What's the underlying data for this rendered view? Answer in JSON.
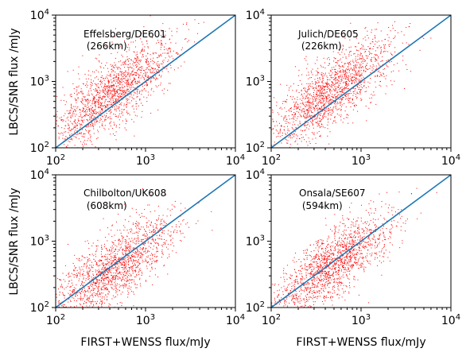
{
  "chart_data": [
    {
      "type": "scatter",
      "panel": "top-left",
      "annotation_line1": "Effelsberg/DE601",
      "annotation_line2": " (266km)",
      "xlabel": "",
      "ylabel": "LBCS/SNR flux /mJy",
      "xscale": "log",
      "yscale": "log",
      "xlim": [
        100,
        10000
      ],
      "ylim": [
        100,
        10000
      ],
      "point_color": "#ff0000",
      "line_color": "#1f77b4",
      "reference_line": "y = x",
      "cluster": {
        "x_center": 450,
        "y_center": 700,
        "n_points": 1600,
        "ratio_median": 1.6
      }
    },
    {
      "type": "scatter",
      "panel": "top-right",
      "annotation_line1": "Julich/DE605",
      "annotation_line2": " (226km)",
      "xlabel": "",
      "ylabel": "",
      "xscale": "log",
      "yscale": "log",
      "xlim": [
        100,
        10000
      ],
      "ylim": [
        100,
        10000
      ],
      "point_color": "#ff0000",
      "line_color": "#1f77b4",
      "reference_line": "y = x",
      "cluster": {
        "x_center": 480,
        "y_center": 700,
        "n_points": 1600,
        "ratio_median": 1.5
      }
    },
    {
      "type": "scatter",
      "panel": "bottom-left",
      "annotation_line1": "Chilbolton/UK608",
      "annotation_line2": " (608km)",
      "xlabel": "FIRST+WENSS flux/mJy",
      "ylabel": "LBCS/SNR flux /mJy",
      "xscale": "log",
      "yscale": "log",
      "xlim": [
        100,
        10000
      ],
      "ylim": [
        100,
        10000
      ],
      "point_color": "#ff0000",
      "line_color": "#1f77b4",
      "reference_line": "y = x",
      "cluster": {
        "x_center": 450,
        "y_center": 420,
        "n_points": 1600,
        "ratio_median": 0.9
      }
    },
    {
      "type": "scatter",
      "panel": "bottom-right",
      "annotation_line1": "Onsala/SE607",
      "annotation_line2": " (594km)",
      "xlabel": "FIRST+WENSS flux/mJy",
      "ylabel": "",
      "xscale": "log",
      "yscale": "log",
      "xlim": [
        100,
        10000
      ],
      "ylim": [
        100,
        10000
      ],
      "point_color": "#ff0000",
      "line_color": "#1f77b4",
      "reference_line": "y = x",
      "cluster": {
        "x_center": 480,
        "y_center": 460,
        "n_points": 1600,
        "ratio_median": 0.95
      }
    }
  ]
}
